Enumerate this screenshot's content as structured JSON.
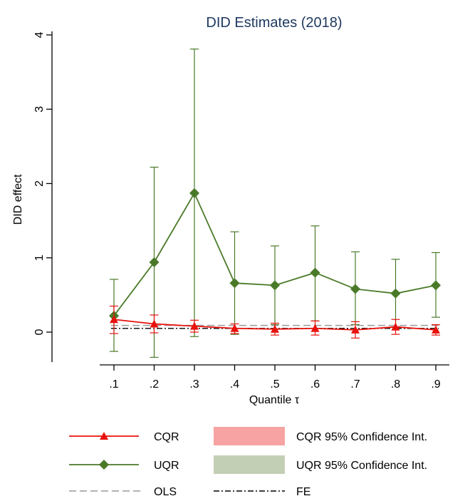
{
  "chart_data": {
    "type": "line",
    "title": "DID Estimates (2018)",
    "xlabel": "Quantile τ",
    "ylabel": "DID effect",
    "x": [
      0.1,
      0.2,
      0.3,
      0.4,
      0.5,
      0.6,
      0.7,
      0.8,
      0.9
    ],
    "x_tick_labels": [
      ".1",
      ".2",
      ".3",
      ".4",
      ".5",
      ".6",
      ".7",
      ".8",
      ".9"
    ],
    "y_ticks": [
      0,
      1,
      2,
      3,
      4
    ],
    "y_tick_labels": [
      "0",
      "1",
      "2",
      "3",
      "4"
    ],
    "xlim": [
      0.05,
      0.95
    ],
    "ylim": [
      -0.45,
      4.1
    ],
    "grid": false,
    "legend_position": "bottom",
    "series": [
      {
        "name": "CQR",
        "color": "#e8120c",
        "marker": "triangle",
        "values": [
          0.17,
          0.11,
          0.08,
          0.05,
          0.04,
          0.05,
          0.03,
          0.07,
          0.03
        ],
        "ci_lower": [
          -0.02,
          -0.01,
          0.0,
          -0.02,
          -0.04,
          -0.04,
          -0.08,
          -0.03,
          -0.04
        ],
        "ci_upper": [
          0.35,
          0.23,
          0.16,
          0.11,
          0.12,
          0.15,
          0.14,
          0.17,
          0.1
        ]
      },
      {
        "name": "UQR",
        "color": "#4a7a28",
        "marker": "diamond",
        "values": [
          0.22,
          0.94,
          1.87,
          0.66,
          0.63,
          0.8,
          0.58,
          0.52,
          0.63
        ],
        "ci_lower": [
          -0.26,
          -0.34,
          -0.06,
          -0.03,
          0.1,
          0.15,
          0.1,
          0.07,
          0.2
        ],
        "ci_upper": [
          0.71,
          2.22,
          3.81,
          1.35,
          1.16,
          1.43,
          1.08,
          0.98,
          1.07
        ]
      }
    ],
    "reference_lines": [
      {
        "name": "OLS",
        "value": 0.09,
        "style": "dashed",
        "color": "#9a9a9a"
      },
      {
        "name": "FE",
        "value": 0.05,
        "style": "dash-dot",
        "color": "#000000"
      }
    ],
    "legend": [
      {
        "label": "CQR",
        "kind": "line-triangle",
        "color": "#e8120c"
      },
      {
        "label": "CQR 95% Confidence Int.",
        "kind": "area",
        "color": "#f7a3a3"
      },
      {
        "label": "UQR",
        "kind": "line-diamond",
        "color": "#4a7a28"
      },
      {
        "label": "UQR 95% Confidence Int.",
        "kind": "area",
        "color": "#c3cfb5"
      },
      {
        "label": "OLS",
        "kind": "dashed",
        "color": "#9a9a9a"
      },
      {
        "label": "FE",
        "kind": "dash-dot",
        "color": "#000000"
      }
    ]
  }
}
